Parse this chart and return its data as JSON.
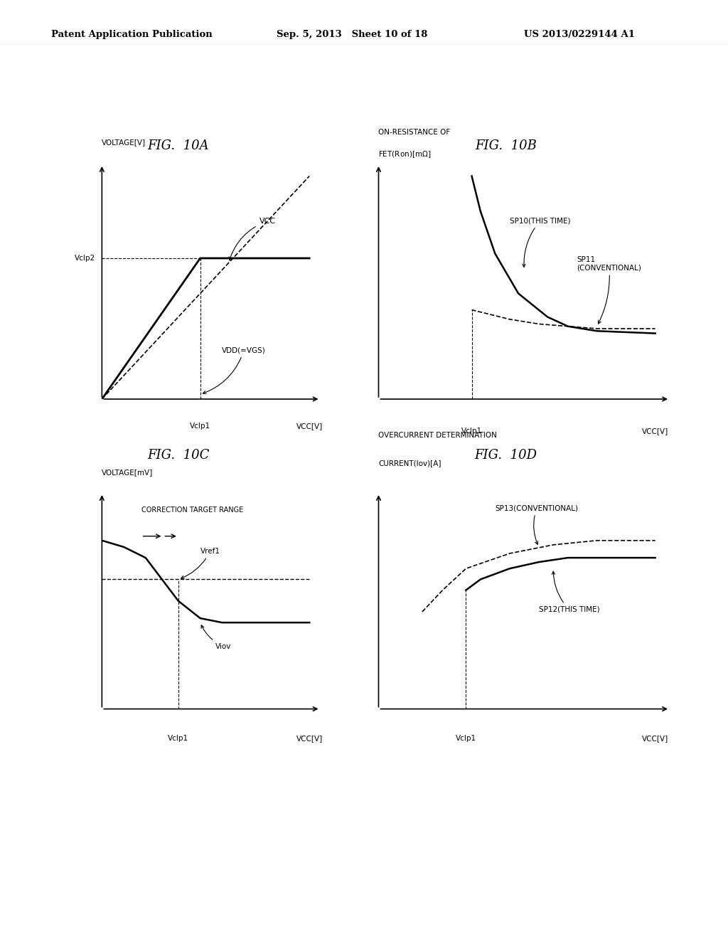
{
  "header_left": "Patent Application Publication",
  "header_mid": "Sep. 5, 2013   Sheet 10 of 18",
  "header_right": "US 2013/0229144 A1",
  "fig10a_title": "FIG.  10A",
  "fig10b_title": "FIG.  10B",
  "fig10c_title": "FIG.  10C",
  "fig10d_title": "FIG.  10D",
  "bg_color": "#ffffff",
  "line_color": "#000000"
}
